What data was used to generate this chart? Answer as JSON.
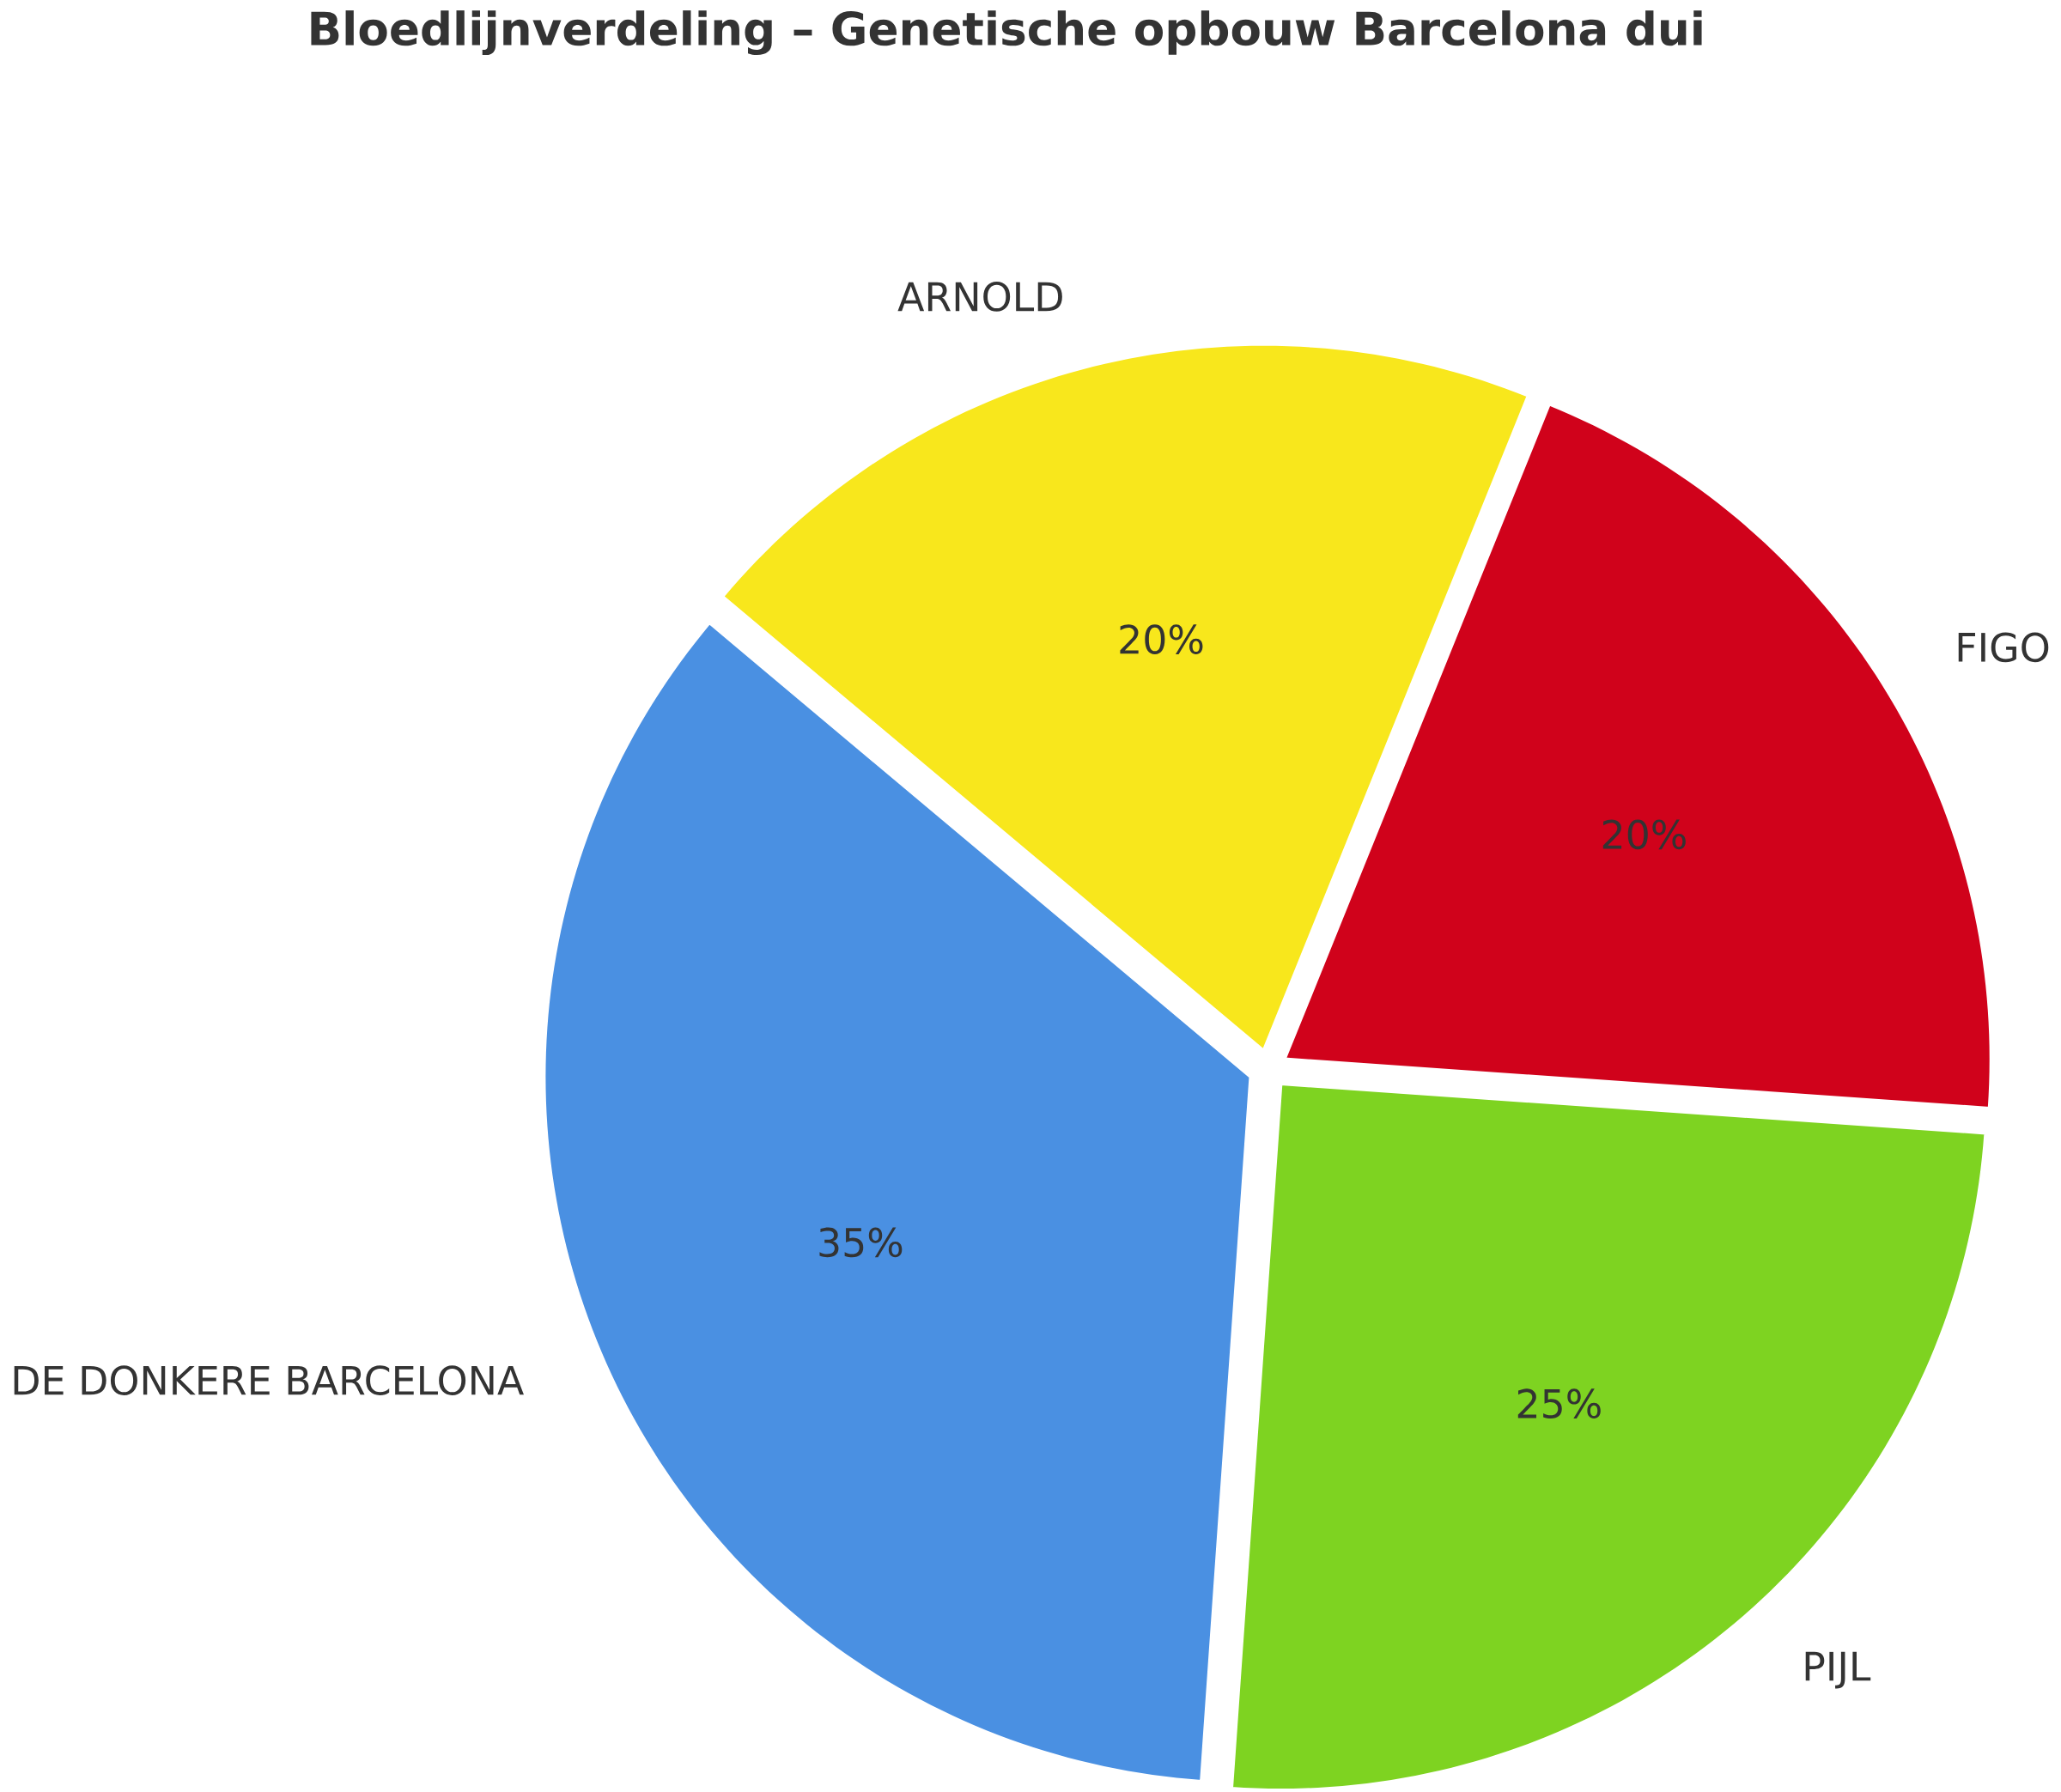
{
  "chart_data": {
    "type": "pie",
    "title": "Bloedlijnverdeling – Genetische opbouw Barcelona dui",
    "categories": [
      "FIGO",
      "ARNOLD",
      "DE DONKERE BARCELONA",
      "PIJL"
    ],
    "values": [
      20,
      20,
      35,
      25
    ],
    "value_labels": [
      "20%",
      "20%",
      "35%",
      "25%"
    ],
    "colors": [
      "#d0021b",
      "#f8e71c",
      "#4a90e2",
      "#7ed321"
    ]
  }
}
